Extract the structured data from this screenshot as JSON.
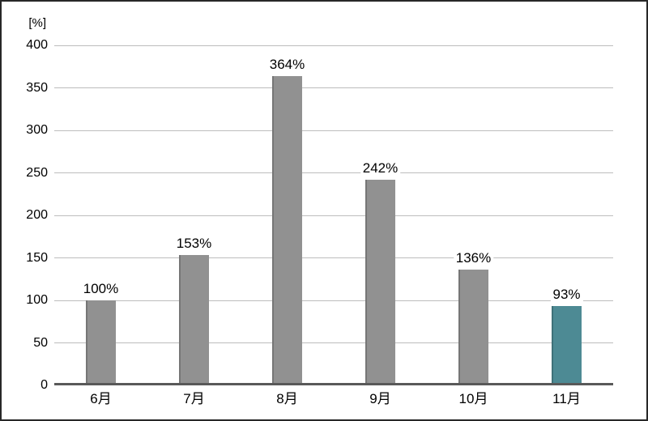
{
  "chart_data": {
    "type": "bar",
    "title": "",
    "xlabel": "",
    "unit_label": "[%]",
    "categories": [
      "6月",
      "7月",
      "8月",
      "9月",
      "10月",
      "11月"
    ],
    "values": [
      100,
      153,
      364,
      242,
      136,
      93
    ],
    "value_labels": [
      "100%",
      "153%",
      "364%",
      "242%",
      "136%",
      "93%"
    ],
    "bar_colors": [
      "#919191",
      "#919191",
      "#919191",
      "#919191",
      "#919191",
      "#4d8a94"
    ],
    "ylim": [
      0,
      400
    ],
    "yticks": [
      0,
      50,
      100,
      150,
      200,
      250,
      300,
      350,
      400
    ],
    "grid": true,
    "legend": "none",
    "colors": {
      "bar_default": "#919191",
      "bar_highlight": "#4d8a94",
      "bar_edge": "rgba(0,0,0,0.18)",
      "gridline": "#bdbdbd",
      "axis_line": "#595959",
      "text": "#000000",
      "background": "#ffffff",
      "frame_border": "#282828"
    }
  }
}
